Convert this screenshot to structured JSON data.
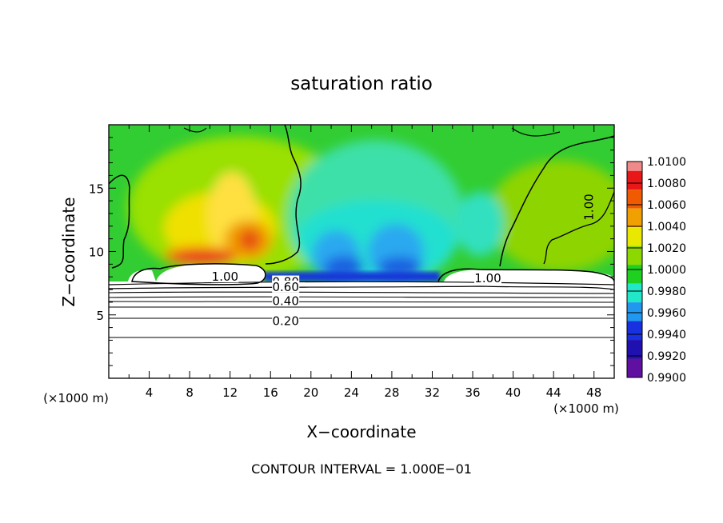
{
  "chart_data": {
    "type": "heatmap",
    "title": "saturation ratio",
    "xlabel": "X−coordinate",
    "ylabel": "Z−coordinate",
    "x_unit_left": "(×1000 m)",
    "x_unit_right": "(×1000 m)",
    "xlim": [
      0,
      50
    ],
    "ylim": [
      0,
      20
    ],
    "x_ticks": [
      4,
      8,
      12,
      16,
      20,
      24,
      28,
      32,
      36,
      40,
      44,
      48
    ],
    "y_ticks": [
      5,
      10,
      15
    ],
    "footer": "CONTOUR INTERVAL = 1.000E−01",
    "colorbar": {
      "values": [
        1.01,
        1.008,
        1.006,
        1.004,
        1.002,
        1.0,
        0.998,
        0.996,
        0.994,
        0.992,
        0.99
      ],
      "labels": [
        "1.0100",
        "1.0080",
        "1.0060",
        "1.0040",
        "1.0020",
        "1.0000",
        "0.9980",
        "0.9960",
        "0.9940",
        "0.9920",
        "0.9900"
      ],
      "colors": [
        "#f08a8a",
        "#e81818",
        "#f05a00",
        "#f0a000",
        "#e8e800",
        "#8cd800",
        "#20d020",
        "#20e8c8",
        "#2098f0",
        "#1830e0",
        "#2010b0",
        "#6010a0"
      ]
    },
    "contour_labels": [
      {
        "text": "1.00",
        "x": 11.5,
        "z": 8.0
      },
      {
        "text": "1.00",
        "x": 37.5,
        "z": 7.9
      },
      {
        "text": "1.00",
        "x": 47.5,
        "z": 13.5
      },
      {
        "text": "0.80",
        "x": 17.5,
        "z": 7.6
      },
      {
        "text": "0.60",
        "x": 17.5,
        "z": 7.2
      },
      {
        "text": "0.40",
        "x": 17.5,
        "z": 6.1
      },
      {
        "text": "0.20",
        "x": 17.5,
        "z": 4.5
      }
    ]
  }
}
